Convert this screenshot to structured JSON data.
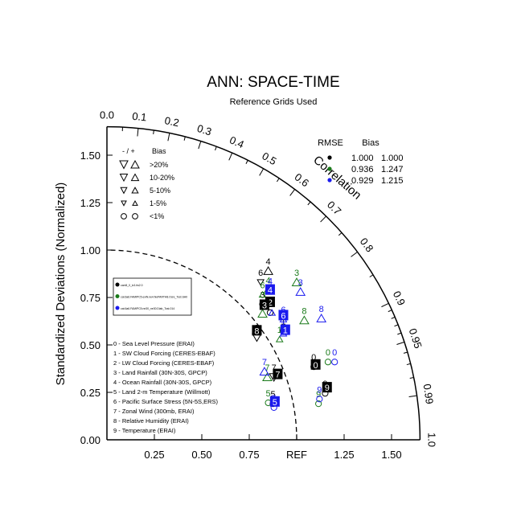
{
  "chart_data": {
    "type": "scatter",
    "title": "ANN: SPACE-TIME",
    "subtitle": "Reference Grids Used",
    "ylabel": "Standardized Deviations (Normalized)",
    "arc_label": "Correlation",
    "ref_label": "REF",
    "std_ticks": [
      "0.25",
      "0.50",
      "0.75",
      "1.25",
      "1.50"
    ],
    "std_tick_values": [
      0.25,
      0.5,
      0.75,
      1.25,
      1.5
    ],
    "y_ticks": [
      "0.00",
      "0.25",
      "0.50",
      "0.75",
      "1.00",
      "1.25",
      "1.50"
    ],
    "y_tick_values": [
      0,
      0.25,
      0.5,
      0.75,
      1.0,
      1.25,
      1.5
    ],
    "corr_top_ticks": [
      "0.0",
      "0.1",
      "0.2",
      "0.3",
      "0.4",
      "0.5",
      "0.6",
      "0.7",
      "0.8",
      "0.9",
      "0.95",
      "0.99",
      "1.0"
    ],
    "corr_top_values": [
      0.0,
      0.1,
      0.2,
      0.3,
      0.4,
      0.5,
      0.6,
      0.7,
      0.8,
      0.9,
      0.95,
      0.99,
      1.0
    ],
    "corr_right_ticks": [
      "0.6",
      "0.7",
      "0.8",
      "0.9",
      "0.95",
      "0.99",
      "1.0"
    ],
    "corr_right_values": [
      0.6,
      0.7,
      0.8,
      0.9,
      0.95,
      0.99,
      1.0
    ],
    "rmse_header": "RMSE",
    "bias_header": "Bias",
    "stats": [
      {
        "rmse": "1.000",
        "bias": "1.000",
        "color": "#000000"
      },
      {
        "rmse": "0.936",
        "bias": "1.247",
        "color": "#1a7a1a"
      },
      {
        "rmse": "0.929",
        "bias": "1.215",
        "color": "#1a1aee"
      }
    ],
    "bias_legend": {
      "header_sign": "- / +",
      "header": "Bias",
      "rows": [
        ">20%",
        "10-20%",
        "5-10%",
        "1-5%",
        "<1%"
      ]
    },
    "case_legend": [
      "cam5_0_tv1.fw2.0",
      "cat.6a6.FAMIPC5.exiN.ne4.NoPARTH8.Ocre_Tost.SA0",
      "cat.6a6.FAMIPC5.ne30_ne30.Diab_Tost.014"
    ],
    "variables": [
      "0 - Sea Level Pressure (ERAI)",
      "1 - SW Cloud Forcing (CERES-EBAF)",
      "2 - LW Cloud Forcing (CERES-EBAF)",
      "3 - Land Rainfall (30N-30S, GPCP)",
      "4 - Ocean Rainfall (30N-30S, GPCP)",
      "5 - Land 2-m Temperature (Willmott)",
      "6 - Pacific Surface Stress (5N-5S,ERS)",
      "7 - Zonal Wind (300mb, ERAI)",
      "8 - Relative Humidity (ERAI)",
      "9 - Temperature (ERAI)"
    ],
    "series": [
      {
        "name": "cam5_0_tv1.fw2.0",
        "color": "#000000",
        "points": [
          {
            "id": "0",
            "x": 1.09,
            "y": 0.385,
            "sym": "o",
            "dir": "none"
          },
          {
            "id": "1",
            "x": 0.93,
            "y": 0.575,
            "sym": "o",
            "dir": "none"
          },
          {
            "id": "2",
            "x": 0.86,
            "y": 0.67,
            "sym": "o",
            "dir": "none"
          },
          {
            "id": "3",
            "x": 0.82,
            "y": 0.715,
            "sym": "o",
            "dir": "none"
          },
          {
            "id": "4",
            "x": 0.85,
            "y": 0.89,
            "sym": "tri",
            "dir": "up"
          },
          {
            "id": "5",
            "x": 0.875,
            "y": 0.19,
            "sym": "o",
            "dir": "none"
          },
          {
            "id": "6",
            "x": 0.81,
            "y": 0.83,
            "sym": "tri-s",
            "dir": "down"
          },
          {
            "id": "7",
            "x": 0.88,
            "y": 0.33,
            "sym": "tri",
            "dir": "down"
          },
          {
            "id": "8",
            "x": 0.79,
            "y": 0.54,
            "sym": "tri",
            "dir": "down"
          },
          {
            "id": "9",
            "x": 1.15,
            "y": 0.245,
            "sym": "o",
            "dir": "none"
          }
        ]
      },
      {
        "name": "cat.6a6.FAMIPC5.exiN.ne4.NoPARTH8.Ocre_Tost.SA0",
        "color": "#1a7a1a",
        "points": [
          {
            "id": "0",
            "x": 1.165,
            "y": 0.41,
            "sym": "o",
            "dir": "none"
          },
          {
            "id": "1",
            "x": 0.91,
            "y": 0.53,
            "sym": "tri-s",
            "dir": "up"
          },
          {
            "id": "2",
            "x": 0.82,
            "y": 0.665,
            "sym": "tri",
            "dir": "up"
          },
          {
            "id": "3",
            "x": 1.0,
            "y": 0.83,
            "sym": "tri",
            "dir": "up"
          },
          {
            "id": "4",
            "x": 0.85,
            "y": 0.79,
            "sym": "tri",
            "dir": "up"
          },
          {
            "id": "5",
            "x": 0.85,
            "y": 0.195,
            "sym": "o",
            "dir": "none"
          },
          {
            "id": "6",
            "x": 0.82,
            "y": 0.765,
            "sym": "tri-s",
            "dir": "up"
          },
          {
            "id": "7",
            "x": 0.845,
            "y": 0.33,
            "sym": "tri",
            "dir": "up"
          },
          {
            "id": "8",
            "x": 1.04,
            "y": 0.63,
            "sym": "tri",
            "dir": "up"
          },
          {
            "id": "9",
            "x": 1.115,
            "y": 0.19,
            "sym": "o",
            "dir": "none"
          }
        ]
      },
      {
        "name": "cat.6a6.FAMIPC5.ne30_ne30.Diab_Tost.014",
        "color": "#1a1aee",
        "points": [
          {
            "id": "0",
            "x": 1.2,
            "y": 0.41,
            "sym": "o",
            "dir": "none"
          },
          {
            "id": "1",
            "x": 0.93,
            "y": 0.56,
            "sym": "tri-s",
            "dir": "up"
          },
          {
            "id": "2",
            "x": 0.87,
            "y": 0.67,
            "sym": "tri-s",
            "dir": "up"
          },
          {
            "id": "3",
            "x": 1.02,
            "y": 0.78,
            "sym": "tri",
            "dir": "up"
          },
          {
            "id": "4",
            "x": 0.86,
            "y": 0.785,
            "sym": "tri",
            "dir": "up"
          },
          {
            "id": "5",
            "x": 0.88,
            "y": 0.17,
            "sym": "o",
            "dir": "none"
          },
          {
            "id": "6",
            "x": 0.93,
            "y": 0.635,
            "sym": "tri-s",
            "dir": "up"
          },
          {
            "id": "7",
            "x": 0.83,
            "y": 0.36,
            "sym": "tri",
            "dir": "up"
          },
          {
            "id": "8",
            "x": 1.13,
            "y": 0.64,
            "sym": "tri",
            "dir": "up"
          },
          {
            "id": "9",
            "x": 1.12,
            "y": 0.215,
            "sym": "o",
            "dir": "none"
          }
        ]
      }
    ],
    "boxed_labels": [
      {
        "series": 0,
        "id": "0",
        "x": 1.1,
        "y": 0.395
      },
      {
        "series": 2,
        "id": "1",
        "x": 0.94,
        "y": 0.578
      },
      {
        "series": 0,
        "id": "2",
        "x": 0.86,
        "y": 0.725
      },
      {
        "series": 0,
        "id": "3",
        "x": 0.83,
        "y": 0.71
      },
      {
        "series": 2,
        "id": "4",
        "x": 0.86,
        "y": 0.79
      },
      {
        "series": 2,
        "id": "5",
        "x": 0.885,
        "y": 0.2
      },
      {
        "series": 2,
        "id": "6",
        "x": 0.93,
        "y": 0.655
      },
      {
        "series": 0,
        "id": "7",
        "x": 0.9,
        "y": 0.345
      },
      {
        "series": 0,
        "id": "8",
        "x": 0.79,
        "y": 0.575
      },
      {
        "series": 0,
        "id": "9",
        "x": 1.16,
        "y": 0.275
      }
    ]
  }
}
